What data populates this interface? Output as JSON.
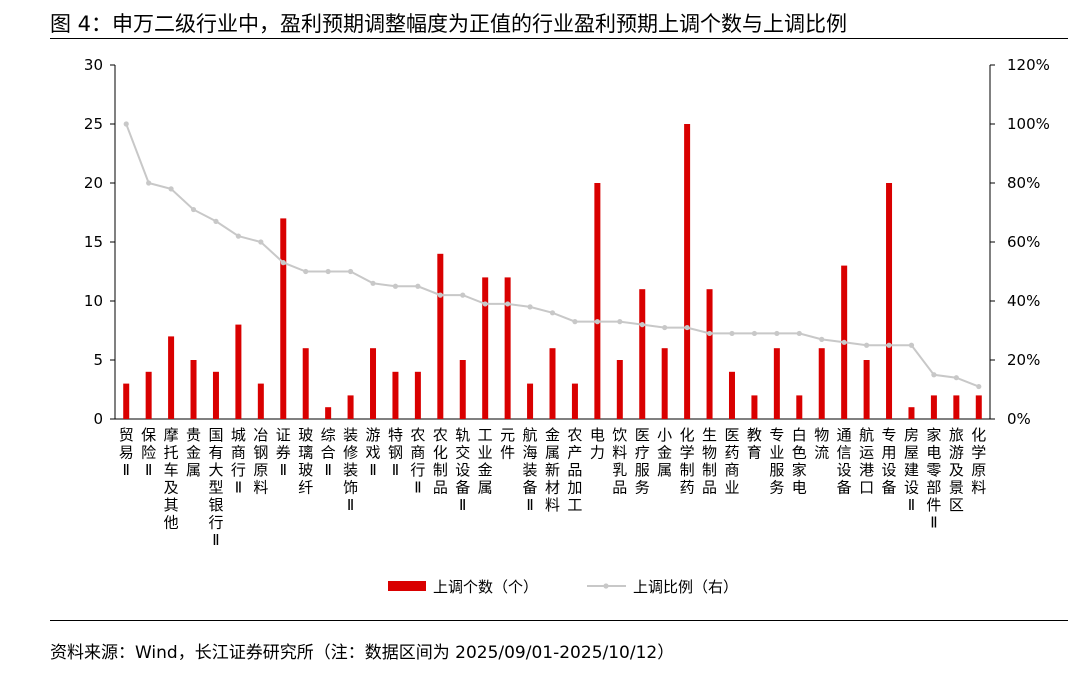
{
  "header": {
    "title": "图 4：申万二级行业中，盈利预期调整幅度为正值的行业盈利预期上调个数与上调比例"
  },
  "footer": {
    "source": "资料来源：Wind，长江证券研究所（注：数据区间为 2025/09/01-2025/10/12）"
  },
  "colors": {
    "bar": "#d90000",
    "line": "#c8c8c8",
    "axis": "#000000"
  },
  "chart_data": {
    "type": "bar+line",
    "categories": [
      "贸易Ⅱ",
      "保险Ⅱ",
      "摩托车及其他",
      "贵金属",
      "国有大型银行Ⅱ",
      "城商行Ⅱ",
      "冶钢原料",
      "证券Ⅱ",
      "玻璃玻纤",
      "综合Ⅱ",
      "装修装饰Ⅱ",
      "游戏Ⅱ",
      "特钢Ⅱ",
      "农商行Ⅱ",
      "农化制品",
      "轨交设备Ⅱ",
      "工业金属",
      "元件",
      "航海装备Ⅱ",
      "金属新材料",
      "农产品加工",
      "电力",
      "饮料乳品",
      "医疗服务",
      "小金属",
      "化学制药",
      "生物制品",
      "医药商业",
      "教育",
      "专业服务",
      "白色家电",
      "物流",
      "通信设备",
      "航运港口",
      "专用设备",
      "房屋建设Ⅱ",
      "家电零部件Ⅱ",
      "旅游及景区",
      "化学原料"
    ],
    "series": [
      {
        "name": "上调个数（个）",
        "type": "bar",
        "axis": "left",
        "values": [
          3,
          4,
          7,
          5,
          4,
          8,
          3,
          17,
          6,
          1,
          2,
          6,
          4,
          4,
          14,
          5,
          12,
          12,
          3,
          6,
          3,
          20,
          5,
          11,
          6,
          25,
          11,
          4,
          2,
          6,
          2,
          6,
          13,
          5,
          20,
          1,
          2,
          2,
          2
        ]
      },
      {
        "name": "上调比例（右）",
        "type": "line",
        "axis": "right",
        "values": [
          100,
          80,
          78,
          71,
          67,
          62,
          60,
          53,
          50,
          50,
          50,
          46,
          45,
          45,
          42,
          42,
          39,
          39,
          38,
          36,
          33,
          33,
          33,
          32,
          31,
          31,
          29,
          29,
          29,
          29,
          29,
          27,
          26,
          25,
          25,
          25,
          15,
          14,
          11
        ]
      }
    ],
    "y_left": {
      "min": 0,
      "max": 30,
      "ticks": [
        "0",
        "5",
        "10",
        "15",
        "20",
        "25",
        "30"
      ]
    },
    "y_right": {
      "min": 0,
      "max": 120,
      "ticks": [
        "0%",
        "20%",
        "40%",
        "60%",
        "80%",
        "100%",
        "120%"
      ]
    },
    "legend": {
      "position": "bottom-center"
    },
    "grid": false
  }
}
